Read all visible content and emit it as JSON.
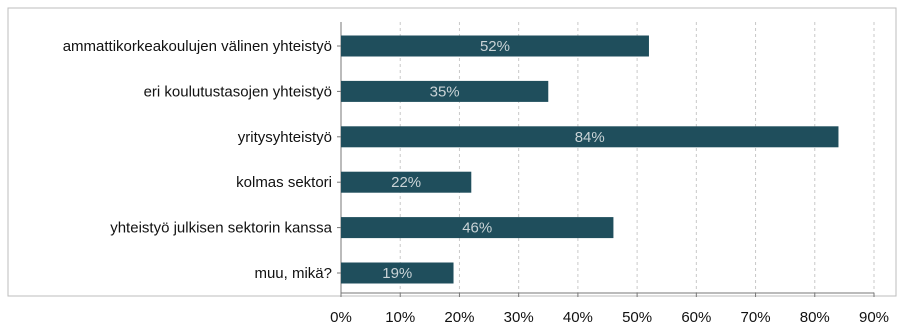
{
  "chart_data": {
    "type": "bar",
    "orientation": "horizontal",
    "categories": [
      "ammattikorkeakoulujen välinen yhteistyö",
      "eri koulutustasojen yhteistyö",
      "yritysyhteistyö",
      "kolmas sektori",
      "yhteistyö julkisen sektorin kanssa",
      "muu, mikä?"
    ],
    "values": [
      52,
      35,
      84,
      22,
      46,
      19
    ],
    "data_labels": [
      "52%",
      "35%",
      "84%",
      "22%",
      "46%",
      "19%"
    ],
    "x_ticks": [
      0,
      10,
      20,
      30,
      40,
      50,
      60,
      70,
      80,
      90
    ],
    "x_tick_labels": [
      "0%",
      "10%",
      "20%",
      "30%",
      "40%",
      "50%",
      "60%",
      "70%",
      "80%",
      "90%"
    ],
    "xlim": [
      0,
      90
    ],
    "grid": "vertical dashed",
    "legend": "none",
    "title": "",
    "xlabel": "",
    "ylabel": "",
    "bar_color": "#1f4e5c",
    "label_color": "#c9d3d6",
    "grid_color": "#c8c8c8",
    "border_color": "#bdbdbd",
    "text_color": "#111111"
  }
}
